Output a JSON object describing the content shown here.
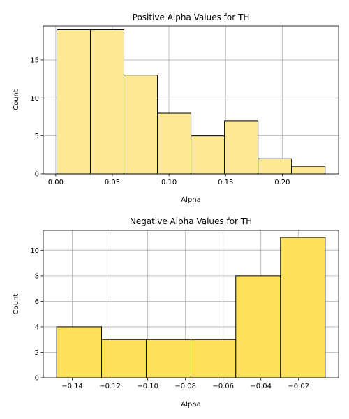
{
  "chart_data": [
    {
      "type": "bar",
      "title": "Positive Alpha Values for TH",
      "xlabel": "Alpha",
      "ylabel": "Count",
      "bin_edges": [
        0.001,
        0.0306,
        0.0602,
        0.0898,
        0.1194,
        0.149,
        0.1786,
        0.2082,
        0.2378
      ],
      "values": [
        19,
        19,
        13,
        8,
        5,
        7,
        2,
        1
      ],
      "xlim": [
        -0.011,
        0.2497
      ],
      "ylim": [
        0,
        19.5
      ],
      "xticks": [
        0.0,
        0.05,
        0.1,
        0.15,
        0.2
      ],
      "xtick_labels": [
        "0.00",
        "0.05",
        "0.10",
        "0.15",
        "0.20"
      ],
      "yticks": [
        0,
        5,
        10,
        15
      ],
      "ytick_labels": [
        "0",
        "5",
        "10",
        "15"
      ],
      "grid": true,
      "bar_color": "#fde994"
    },
    {
      "type": "bar",
      "title": "Negative Alpha Values for TH",
      "xlabel": "Alpha",
      "ylabel": "Count",
      "bin_edges": [
        -0.1483,
        -0.1245,
        -0.1008,
        -0.0771,
        -0.0533,
        -0.0296,
        -0.0059
      ],
      "values": [
        4,
        3,
        3,
        3,
        8,
        11
      ],
      "xlim": [
        -0.1554,
        0.0012
      ],
      "ylim": [
        0,
        11.55
      ],
      "xticks": [
        -0.14,
        -0.12,
        -0.1,
        -0.08,
        -0.06,
        -0.04,
        -0.02
      ],
      "xtick_labels": [
        "−0.14",
        "−0.12",
        "−0.10",
        "−0.08",
        "−0.06",
        "−0.04",
        "−0.02"
      ],
      "yticks": [
        0,
        2,
        4,
        6,
        8,
        10
      ],
      "ytick_labels": [
        "0",
        "2",
        "4",
        "6",
        "8",
        "10"
      ],
      "grid": true,
      "bar_color": "#fee05a"
    }
  ]
}
